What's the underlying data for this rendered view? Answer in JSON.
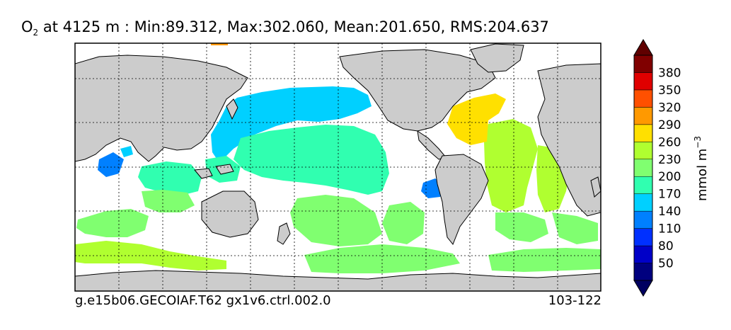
{
  "title": {
    "species": "O",
    "subscript": "2",
    "rest": " at 4125 m : Min:89.312, Max:302.060, Mean:201.650, RMS:204.637"
  },
  "footer": {
    "case_name": "g.e15b06.GECOIAF.T62 gx1v6.ctrl.002.0",
    "years": "103-122"
  },
  "colorbar": {
    "units": "mmol m",
    "units_exponent": "−3",
    "tick_labels": [
      "50",
      "80",
      "110",
      "140",
      "170",
      "200",
      "230",
      "260",
      "290",
      "320",
      "350",
      "380"
    ],
    "levels": [
      20,
      50,
      80,
      110,
      140,
      170,
      200,
      230,
      260,
      290,
      320,
      350,
      380,
      410
    ],
    "colors": [
      "#00007f",
      "#0000c8",
      "#0030ff",
      "#0080ff",
      "#00d0ff",
      "#30ffb0",
      "#80ff70",
      "#b0ff30",
      "#ffe000",
      "#ff9900",
      "#ff5000",
      "#e00000",
      "#800000"
    ],
    "under_color": "#000060",
    "over_color": "#600000"
  },
  "colors": {
    "land": "#cccccc",
    "ocean_missing": "#ffffff"
  }
}
